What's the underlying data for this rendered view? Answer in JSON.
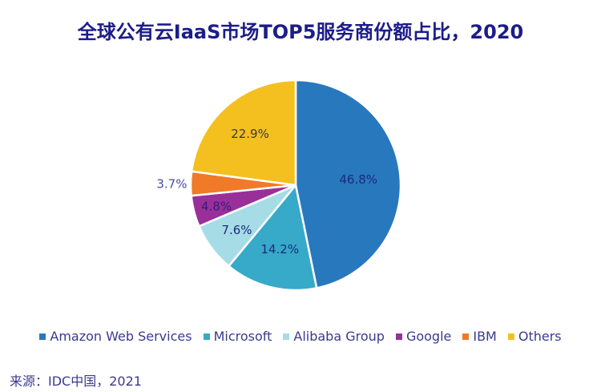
{
  "chart_data": {
    "type": "pie",
    "title": "全球公有云IaaS市场TOP5服务商份额占比，2020",
    "categories": [
      "Amazon Web Services",
      "Microsoft",
      "Alibaba Group",
      "Google",
      "IBM",
      "Others"
    ],
    "values": [
      46.8,
      14.2,
      7.6,
      4.8,
      3.7,
      22.9
    ],
    "labels": [
      "46.8%",
      "14.2%",
      "7.6%",
      "4.8%",
      "3.7%",
      "22.9%"
    ],
    "colors": [
      "#2878be",
      "#36aac8",
      "#a6dce6",
      "#99309a",
      "#f07a28",
      "#f4c020"
    ],
    "label_colors": [
      "#1e2a80",
      "#1e2a80",
      "#1e2a80",
      "#3a1a7a",
      "#4a4aa0",
      "#3a3a3a"
    ],
    "start_angle_deg": 0,
    "direction": "clockwise",
    "legend_position": "bottom",
    "source": "来源：IDC中国，2021"
  }
}
